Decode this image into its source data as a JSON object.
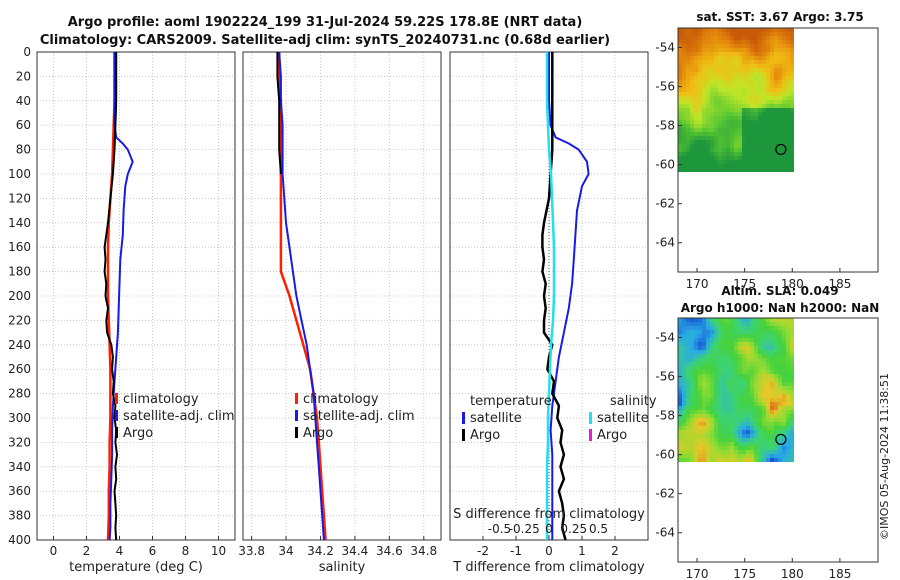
{
  "title": {
    "line1": "Argo profile: aoml 1902224_199 31-Jul-2024 59.22S 178.8E (NRT data)",
    "line2": "Climatology: CARS2009. Satellite-adj clim: synTS_20240731.nc (0.68d earlier)"
  },
  "colors": {
    "clim": "#ff2000",
    "sat": "#1a1ae6",
    "argo": "#000000",
    "sat_s": "#22e0f0",
    "argo_s": "#e020e0"
  },
  "chart_data": [
    {
      "type": "line",
      "name": "temperature",
      "xlabel": "temperature (deg C)",
      "ylabel": "",
      "xlim": [
        -1,
        11
      ],
      "ylim": [
        400,
        0
      ],
      "xticks": [
        0,
        2,
        4,
        6,
        8,
        10
      ],
      "yticks": [
        0,
        20,
        40,
        60,
        80,
        100,
        120,
        140,
        160,
        180,
        200,
        220,
        240,
        260,
        280,
        300,
        320,
        340,
        360,
        380,
        400
      ],
      "grid": true,
      "legend": {
        "items": [
          "climatology",
          "satellite-adj. clim",
          "Argo"
        ],
        "position": "bottom-right"
      },
      "series": [
        {
          "name": "climatology",
          "color": "clim",
          "width": 2.5,
          "depth": [
            0,
            20,
            40,
            60,
            80,
            100,
            120,
            140,
            160,
            180,
            200,
            220,
            240,
            260,
            280,
            300,
            320,
            340,
            360,
            380,
            400
          ],
          "values": [
            3.7,
            3.7,
            3.7,
            3.65,
            3.6,
            3.55,
            3.45,
            3.35,
            3.3,
            3.3,
            3.3,
            3.35,
            3.4,
            3.45,
            3.45,
            3.45,
            3.4,
            3.4,
            3.35,
            3.35,
            3.3
          ]
        },
        {
          "name": "satellite-adj. clim",
          "color": "sat",
          "width": 2,
          "depth": [
            0,
            20,
            40,
            60,
            70,
            75,
            80,
            90,
            100,
            110,
            130,
            150,
            170,
            190,
            210,
            230,
            250,
            270,
            290,
            310,
            330,
            350,
            370,
            390,
            400
          ],
          "values": [
            3.7,
            3.7,
            3.7,
            3.7,
            3.8,
            4.2,
            4.5,
            4.8,
            4.5,
            4.35,
            4.25,
            4.2,
            4.05,
            4.0,
            3.95,
            3.9,
            3.8,
            3.7,
            3.6,
            3.55,
            3.55,
            3.5,
            3.45,
            3.45,
            3.4
          ]
        },
        {
          "name": "Argo",
          "color": "argo",
          "width": 2,
          "depth": [
            0,
            20,
            40,
            60,
            80,
            100,
            120,
            140,
            150,
            160,
            170,
            180,
            190,
            200,
            210,
            220,
            230,
            240,
            250,
            260,
            270,
            280,
            290,
            300,
            310,
            320,
            330,
            340,
            350,
            360,
            370,
            380,
            390,
            400
          ],
          "values": [
            3.8,
            3.8,
            3.8,
            3.75,
            3.7,
            3.6,
            3.45,
            3.3,
            3.2,
            3.1,
            3.15,
            3.1,
            3.2,
            3.15,
            3.3,
            3.2,
            3.25,
            3.5,
            3.6,
            3.55,
            3.65,
            3.6,
            3.75,
            3.7,
            3.8,
            3.75,
            3.85,
            3.75,
            3.8,
            3.7,
            3.75,
            3.8,
            3.75,
            3.8
          ]
        }
      ]
    },
    {
      "type": "line",
      "name": "salinity",
      "xlabel": "salinity",
      "ylabel": "",
      "xlim": [
        33.75,
        34.9
      ],
      "ylim": [
        400,
        0
      ],
      "xticks": [
        33.8,
        34,
        34.2,
        34.4,
        34.6,
        34.8
      ],
      "xtick_labels": [
        "33.8",
        "34",
        "34.2",
        "34.4",
        "34.6",
        "34.8"
      ],
      "grid": true,
      "legend": {
        "items": [
          "climatology",
          "satellite-adj. clim",
          "Argo"
        ],
        "position": "bottom-right"
      },
      "series": [
        {
          "name": "climatology",
          "color": "clim",
          "width": 2.5,
          "depth": [
            0,
            20,
            40,
            60,
            80,
            100,
            120,
            140,
            160,
            180,
            200,
            220,
            240,
            260,
            280,
            300,
            320,
            340,
            360,
            380,
            400
          ],
          "values": [
            33.96,
            33.96,
            33.97,
            33.97,
            33.97,
            33.97,
            33.97,
            33.97,
            33.97,
            33.97,
            34.02,
            34.06,
            34.1,
            34.14,
            34.16,
            34.18,
            34.19,
            34.2,
            34.21,
            34.22,
            34.23
          ]
        },
        {
          "name": "satellite-adj. clim",
          "color": "sat",
          "width": 2,
          "depth": [
            0,
            20,
            40,
            60,
            80,
            100,
            120,
            140,
            160,
            180,
            200,
            220,
            240,
            260,
            280,
            300,
            320,
            340,
            360,
            380,
            400
          ],
          "values": [
            33.96,
            33.97,
            33.97,
            33.98,
            33.98,
            33.98,
            33.99,
            34.0,
            34.02,
            34.04,
            34.06,
            34.09,
            34.12,
            34.14,
            34.16,
            34.17,
            34.18,
            34.19,
            34.2,
            34.21,
            34.22
          ]
        },
        {
          "name": "Argo",
          "color": "argo",
          "width": 2,
          "depth": [
            0,
            20,
            40,
            60,
            80,
            100
          ],
          "values": [
            33.95,
            33.95,
            33.96,
            33.96,
            33.96,
            33.97
          ]
        }
      ]
    },
    {
      "type": "line",
      "name": "difference",
      "xlabel": "T difference from climatology",
      "ylabel": "",
      "xlim": [
        -3,
        3
      ],
      "ylim": [
        400,
        0
      ],
      "xticks": [
        -2,
        -1,
        0,
        1,
        2
      ],
      "xtick_labels": [
        "-2",
        "-1",
        "0",
        "1",
        "2"
      ],
      "top_xlabel": "S difference from climatology",
      "top_ticks": [
        -0.5,
        -0.25,
        0,
        0.25,
        0.5
      ],
      "top_tick_labels": [
        "-0.5",
        "-0.25",
        "0",
        "0.25",
        "0.5"
      ],
      "grid": true,
      "legend": {
        "temperature_header": "temperature",
        "salinity_header": "salinity",
        "items": [
          "satellite",
          "Argo",
          "satellite",
          "Argo"
        ],
        "position": "bottom"
      },
      "series": [
        {
          "name": "temperature satellite",
          "color": "sat",
          "width": 2,
          "depth": [
            0,
            20,
            40,
            60,
            70,
            75,
            80,
            90,
            100,
            110,
            130,
            150,
            170,
            190,
            210,
            230,
            250,
            270,
            290,
            310,
            330,
            350,
            370,
            390,
            400
          ],
          "values": [
            0,
            0,
            0,
            0.05,
            0.2,
            0.6,
            0.9,
            1.15,
            1.2,
            1.0,
            0.85,
            0.8,
            0.75,
            0.7,
            0.6,
            0.45,
            0.3,
            0.2,
            0.1,
            0.05,
            0.1,
            0.1,
            0.1,
            0.1,
            0.1
          ]
        },
        {
          "name": "temperature Argo",
          "color": "argo",
          "width": 2.5,
          "depth": [
            0,
            20,
            40,
            60,
            80,
            100,
            120,
            140,
            150,
            160,
            170,
            180,
            190,
            200,
            210,
            220,
            230,
            240,
            250,
            260,
            270,
            280,
            290,
            300,
            310,
            320,
            330,
            340,
            350,
            360,
            370,
            380,
            390,
            400
          ],
          "values": [
            0.1,
            0.1,
            0.1,
            0.1,
            0.1,
            0.05,
            0,
            -0.15,
            -0.2,
            -0.2,
            -0.15,
            -0.2,
            -0.1,
            -0.15,
            -0.1,
            -0.15,
            -0.15,
            0.1,
            0.0,
            -0.05,
            0.15,
            0.1,
            0.3,
            0.25,
            0.4,
            0.35,
            0.45,
            0.35,
            0.45,
            0.3,
            0.4,
            0.45,
            0.4,
            0.5
          ]
        },
        {
          "name": "salinity satellite",
          "color": "sat_s",
          "width": 2.5,
          "depth": [
            0,
            20,
            40,
            60,
            80,
            100,
            120,
            140,
            160,
            180,
            200,
            220,
            240,
            260,
            280,
            300,
            320,
            340,
            360,
            380,
            400
          ],
          "values": [
            -0.02,
            -0.02,
            -0.02,
            -0.01,
            0,
            0.02,
            0.03,
            0.04,
            0.05,
            0.05,
            0.05,
            0.04,
            0.02,
            0.01,
            0,
            -0.01,
            -0.01,
            -0.02,
            -0.02,
            -0.02,
            -0.02
          ]
        }
      ]
    },
    {
      "type": "heatmap",
      "name": "sst_map",
      "title": "sat. SST: 3.67 Argo: 3.75",
      "xticks": [
        170,
        175,
        180,
        185
      ],
      "yticks": [
        -54,
        -56,
        -58,
        -60,
        -62,
        -64
      ],
      "xlim": [
        168,
        189
      ],
      "ylim": [
        -65.5,
        -53
      ],
      "data_extent": {
        "lon": [
          168,
          180
        ],
        "lat": [
          -60.2,
          -53
        ]
      },
      "marker": {
        "lon": 178.8,
        "lat": -59.22
      },
      "palette": "sst"
    },
    {
      "type": "heatmap",
      "name": "sla_map",
      "title_line1": "Altim. SLA: 0.049",
      "title_line2": "Argo h1000: NaN h2000: NaN",
      "xticks": [
        170,
        175,
        180,
        185
      ],
      "yticks": [
        -54,
        -56,
        -58,
        -60,
        -62,
        -64
      ],
      "xlim": [
        168,
        189
      ],
      "ylim": [
        -65.5,
        -53
      ],
      "data_extent": {
        "lon": [
          168,
          180
        ],
        "lat": [
          -60.2,
          -53
        ]
      },
      "marker": {
        "lon": 178.8,
        "lat": -59.22
      },
      "palette": "sla"
    }
  ],
  "footer": {
    "stamp": "©IMOS 05-Aug-2024 11:38:51"
  }
}
